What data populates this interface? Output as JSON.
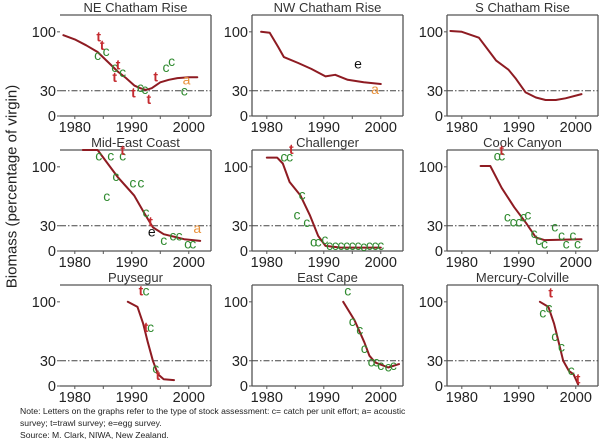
{
  "figure": {
    "ylabel": "Biomass (percentage of virgin)",
    "note_lines": [
      "Note: Letters on the graphs refer to the type of stock assessment: c= catch per unit effort; a= acoustic",
      "survey; t=trawl survey; e=egg survey.",
      "Source: M. Clark, NIWA, New Zealand."
    ],
    "colors": {
      "curve": "#8e1b22",
      "reference_line": "#444444",
      "axis": "#555555",
      "c": "#2f8a2f",
      "t": "#c42b30",
      "a": "#e8913a",
      "e": "#111111"
    }
  },
  "chart_data": [
    {
      "type": "line",
      "title": "NE Chatham Rise",
      "xlabel": "",
      "ylabel": "Biomass (percentage of virgin)",
      "xlim": [
        1977.4,
        2003.9
      ],
      "ylim": [
        0,
        120
      ],
      "xticks": [
        "1980",
        "1990",
        "2000"
      ],
      "yticks": [
        "0",
        "30",
        "100"
      ],
      "reference_line": 30,
      "curve": [
        [
          1978,
          96
        ],
        [
          1980,
          91
        ],
        [
          1982,
          84
        ],
        [
          1984,
          76
        ],
        [
          1986,
          63
        ],
        [
          1987.5,
          53
        ],
        [
          1989,
          45
        ],
        [
          1990.5,
          36
        ],
        [
          1991.5,
          33
        ],
        [
          1992.5,
          31
        ],
        [
          1993.5,
          33
        ],
        [
          1995,
          40
        ],
        [
          1996.5,
          43
        ],
        [
          1998,
          45
        ],
        [
          2000,
          46
        ],
        [
          2001.5,
          46
        ]
      ],
      "markers": [
        {
          "type": "t",
          "year": 1984.2,
          "value": 93
        },
        {
          "type": "t",
          "year": 1984.8,
          "value": 83
        },
        {
          "type": "c",
          "year": 1984.0,
          "value": 71
        },
        {
          "type": "c",
          "year": 1985.5,
          "value": 76
        },
        {
          "type": "c",
          "year": 1987.0,
          "value": 57
        },
        {
          "type": "t",
          "year": 1987.6,
          "value": 60
        },
        {
          "type": "c",
          "year": 1988.4,
          "value": 51
        },
        {
          "type": "t",
          "year": 1987.0,
          "value": 45
        },
        {
          "type": "t",
          "year": 1990.3,
          "value": 27
        },
        {
          "type": "c",
          "year": 1991.5,
          "value": 33
        },
        {
          "type": "c",
          "year": 1992.3,
          "value": 31
        },
        {
          "type": "t",
          "year": 1993.0,
          "value": 19
        },
        {
          "type": "t",
          "year": 1994.2,
          "value": 46
        },
        {
          "type": "c",
          "year": 1996.0,
          "value": 57
        },
        {
          "type": "c",
          "year": 1997.0,
          "value": 64
        },
        {
          "type": "a",
          "year": 1999.6,
          "value": 42
        },
        {
          "type": "c",
          "year": 1999.2,
          "value": 29
        }
      ]
    },
    {
      "type": "line",
      "title": "NW Chatham Rise",
      "xlabel": "",
      "ylabel": "",
      "xlim": [
        1977.4,
        2003.9
      ],
      "ylim": [
        0,
        120
      ],
      "xticks": [
        "1980",
        "1990",
        "2000"
      ],
      "yticks": [
        "0",
        "30",
        "100"
      ],
      "reference_line": 30,
      "curve": [
        [
          1979,
          100
        ],
        [
          1980.5,
          99
        ],
        [
          1982,
          82
        ],
        [
          1983,
          70
        ],
        [
          1985.5,
          63
        ],
        [
          1987.8,
          56
        ],
        [
          1990.3,
          47
        ],
        [
          1992,
          49
        ],
        [
          1994.2,
          43
        ],
        [
          1997,
          40
        ],
        [
          2000,
          38
        ]
      ],
      "markers": [
        {
          "type": "e",
          "year": 1996.0,
          "value": 61
        },
        {
          "type": "a",
          "year": 1999.0,
          "value": 31
        }
      ]
    },
    {
      "type": "line",
      "title": "S Chatham Rise",
      "xlabel": "",
      "ylabel": "",
      "xlim": [
        1977.4,
        2003.9
      ],
      "ylim": [
        0,
        120
      ],
      "xticks": [
        "1980",
        "1990",
        "2000"
      ],
      "yticks": [
        "0",
        "30",
        "100"
      ],
      "reference_line": 30,
      "curve": [
        [
          1978,
          101
        ],
        [
          1980,
          100
        ],
        [
          1983,
          93
        ],
        [
          1986,
          66
        ],
        [
          1988.2,
          55
        ],
        [
          1989.4,
          45
        ],
        [
          1991.2,
          28
        ],
        [
          1993,
          22
        ],
        [
          1994.7,
          19
        ],
        [
          1996.5,
          19
        ],
        [
          1998.2,
          21
        ],
        [
          2001,
          26
        ]
      ],
      "markers": []
    },
    {
      "type": "line",
      "title": "Mid-East Coast",
      "xlabel": "",
      "ylabel": "Biomass (percentage of virgin)",
      "xlim": [
        1977.4,
        2003.9
      ],
      "ylim": [
        0,
        120
      ],
      "xticks": [
        "1980",
        "1990",
        "2000"
      ],
      "yticks": [
        "0",
        "30",
        "100"
      ],
      "reference_line": 30,
      "curve": [
        [
          1981.4,
          120
        ],
        [
          1984,
          120
        ],
        [
          1987.5,
          88
        ],
        [
          1990.4,
          66
        ],
        [
          1992.2,
          45
        ],
        [
          1993.7,
          28
        ],
        [
          1995.6,
          20
        ],
        [
          1999.2,
          14
        ],
        [
          2002,
          12
        ]
      ],
      "markers": [
        {
          "type": "c",
          "year": 1984.2,
          "value": 112
        },
        {
          "type": "c",
          "year": 1986.3,
          "value": 112
        },
        {
          "type": "c",
          "year": 1988.4,
          "value": 112
        },
        {
          "type": "t",
          "year": 1988.4,
          "value": 119
        },
        {
          "type": "c",
          "year": 1987.2,
          "value": 88
        },
        {
          "type": "c",
          "year": 1990.2,
          "value": 80
        },
        {
          "type": "c",
          "year": 1991.6,
          "value": 80
        },
        {
          "type": "c",
          "year": 1985.6,
          "value": 64
        },
        {
          "type": "c",
          "year": 1992.5,
          "value": 45
        },
        {
          "type": "t",
          "year": 1993.3,
          "value": 34
        },
        {
          "type": "e",
          "year": 1993.5,
          "value": 22
        },
        {
          "type": "c",
          "year": 1995.6,
          "value": 12
        },
        {
          "type": "c",
          "year": 1997.2,
          "value": 17
        },
        {
          "type": "c",
          "year": 1998.3,
          "value": 17
        },
        {
          "type": "c",
          "year": 1999.8,
          "value": 8
        },
        {
          "type": "c",
          "year": 2000.7,
          "value": 8
        },
        {
          "type": "a",
          "year": 2001.5,
          "value": 26
        }
      ]
    },
    {
      "type": "line",
      "title": "Challenger",
      "xlabel": "",
      "ylabel": "",
      "xlim": [
        1977.4,
        2003.9
      ],
      "ylim": [
        0,
        120
      ],
      "xticks": [
        "1980",
        "1990",
        "2000"
      ],
      "yticks": [
        "0",
        "30",
        "100"
      ],
      "reference_line": 30,
      "curve": [
        [
          1980,
          111
        ],
        [
          1981.8,
          111
        ],
        [
          1982.8,
          104
        ],
        [
          1984,
          82
        ],
        [
          1985.9,
          66
        ],
        [
          1987.6,
          42
        ],
        [
          1989,
          18
        ],
        [
          1990.3,
          6
        ],
        [
          1993,
          4
        ],
        [
          2000,
          4
        ]
      ],
      "markers": [
        {
          "type": "c",
          "year": 1983.0,
          "value": 111
        },
        {
          "type": "c",
          "year": 1984.0,
          "value": 111
        },
        {
          "type": "t",
          "year": 1984.3,
          "value": 120
        },
        {
          "type": "c",
          "year": 1986.2,
          "value": 66
        },
        {
          "type": "c",
          "year": 1985.3,
          "value": 42
        },
        {
          "type": "c",
          "year": 1987.0,
          "value": 33
        },
        {
          "type": "c",
          "year": 1988.2,
          "value": 10
        },
        {
          "type": "c",
          "year": 1989.0,
          "value": 10
        },
        {
          "type": "c",
          "year": 1990.2,
          "value": 13
        },
        {
          "type": "c",
          "year": 1991.0,
          "value": 6
        },
        {
          "type": "c",
          "year": 1992.0,
          "value": 6
        },
        {
          "type": "c",
          "year": 1993.0,
          "value": 6
        },
        {
          "type": "c",
          "year": 1994.0,
          "value": 6
        },
        {
          "type": "c",
          "year": 1995.0,
          "value": 6
        },
        {
          "type": "c",
          "year": 1996.0,
          "value": 6
        },
        {
          "type": "c",
          "year": 1997.0,
          "value": 5
        },
        {
          "type": "c",
          "year": 1998.0,
          "value": 6
        },
        {
          "type": "c",
          "year": 1999.0,
          "value": 6
        },
        {
          "type": "c",
          "year": 2000.0,
          "value": 6
        }
      ]
    },
    {
      "type": "line",
      "title": "Cook Canyon",
      "xlabel": "",
      "ylabel": "",
      "xlim": [
        1977.4,
        2003.9
      ],
      "ylim": [
        0,
        120
      ],
      "xticks": [
        "1980",
        "1990",
        "2000"
      ],
      "yticks": [
        "0",
        "30",
        "100"
      ],
      "reference_line": 30,
      "curve": [
        [
          1983.3,
          101
        ],
        [
          1985,
          101
        ],
        [
          1987,
          75
        ],
        [
          1989.2,
          52
        ],
        [
          1991.3,
          33
        ],
        [
          1993,
          16
        ],
        [
          1994.5,
          13
        ],
        [
          2001,
          14
        ]
      ],
      "markers": [
        {
          "type": "c",
          "year": 1986.2,
          "value": 112
        },
        {
          "type": "c",
          "year": 1987.0,
          "value": 112
        },
        {
          "type": "t",
          "year": 1987.0,
          "value": 119
        },
        {
          "type": "c",
          "year": 1988.0,
          "value": 40
        },
        {
          "type": "c",
          "year": 1989.0,
          "value": 34
        },
        {
          "type": "c",
          "year": 1990.0,
          "value": 34
        },
        {
          "type": "c",
          "year": 1990.8,
          "value": 40
        },
        {
          "type": "c",
          "year": 1991.6,
          "value": 42
        },
        {
          "type": "c",
          "year": 1992.7,
          "value": 20
        },
        {
          "type": "c",
          "year": 1993.5,
          "value": 12
        },
        {
          "type": "c",
          "year": 1994.5,
          "value": 8
        },
        {
          "type": "c",
          "year": 1996.3,
          "value": 28
        },
        {
          "type": "c",
          "year": 1997.5,
          "value": 18
        },
        {
          "type": "c",
          "year": 1998.3,
          "value": 8
        },
        {
          "type": "c",
          "year": 1999.5,
          "value": 18
        },
        {
          "type": "c",
          "year": 2000.3,
          "value": 8
        }
      ]
    },
    {
      "type": "line",
      "title": "Puysegur",
      "xlabel": "",
      "ylabel": "Biomass (percentage of virgin)",
      "xlim": [
        1977.4,
        2003.9
      ],
      "ylim": [
        0,
        120
      ],
      "xticks": [
        "1980",
        "1990",
        "2000"
      ],
      "yticks": [
        "0",
        "30",
        "100"
      ],
      "reference_line": 30,
      "curve": [
        [
          1989.3,
          100
        ],
        [
          1991,
          94
        ],
        [
          1992,
          74
        ],
        [
          1992.8,
          52
        ],
        [
          1993.7,
          30
        ],
        [
          1994.6,
          14
        ],
        [
          1995.6,
          8
        ],
        [
          1997.4,
          7
        ]
      ],
      "markers": [
        {
          "type": "t",
          "year": 1991.6,
          "value": 112
        },
        {
          "type": "c",
          "year": 1992.5,
          "value": 112
        },
        {
          "type": "t",
          "year": 1992.5,
          "value": 69
        },
        {
          "type": "c",
          "year": 1993.3,
          "value": 69
        },
        {
          "type": "c",
          "year": 1994.2,
          "value": 20
        },
        {
          "type": "t",
          "year": 1994.6,
          "value": 12
        }
      ]
    },
    {
      "type": "line",
      "title": "East Cape",
      "xlabel": "",
      "ylabel": "",
      "xlim": [
        1977.4,
        2003.9
      ],
      "ylim": [
        0,
        120
      ],
      "xticks": [
        "1980",
        "1990",
        "2000"
      ],
      "yticks": [
        "0",
        "30",
        "100"
      ],
      "reference_line": 30,
      "curve": [
        [
          1993.4,
          100
        ],
        [
          1995.4,
          78
        ],
        [
          1997.1,
          52
        ],
        [
          1998,
          36
        ],
        [
          1999,
          28
        ],
        [
          2001.3,
          22
        ],
        [
          2003.2,
          26
        ]
      ],
      "markers": [
        {
          "type": "c",
          "year": 1994.2,
          "value": 112
        },
        {
          "type": "c",
          "year": 1995.0,
          "value": 76
        },
        {
          "type": "c",
          "year": 1996.3,
          "value": 66
        },
        {
          "type": "c",
          "year": 1997.1,
          "value": 44
        },
        {
          "type": "c",
          "year": 1998.3,
          "value": 28
        },
        {
          "type": "c",
          "year": 1999.2,
          "value": 28
        },
        {
          "type": "c",
          "year": 2000.0,
          "value": 24
        },
        {
          "type": "c",
          "year": 2001.3,
          "value": 22
        },
        {
          "type": "c",
          "year": 2002.2,
          "value": 24
        }
      ]
    },
    {
      "type": "line",
      "title": "Mercury-Colville",
      "xlabel": "",
      "ylabel": "",
      "xlim": [
        1977.4,
        2003.9
      ],
      "ylim": [
        0,
        120
      ],
      "xticks": [
        "1980",
        "1990",
        "2000"
      ],
      "yticks": [
        "0",
        "30",
        "100"
      ],
      "reference_line": 30,
      "curve": [
        [
          1993.7,
          100
        ],
        [
          1995.2,
          94
        ],
        [
          1996.2,
          74
        ],
        [
          1997,
          52
        ],
        [
          1997.8,
          30
        ],
        [
          1998.8,
          18
        ],
        [
          1999.6,
          14
        ],
        [
          2000.4,
          2
        ]
      ],
      "markers": [
        {
          "type": "t",
          "year": 1995.6,
          "value": 110
        },
        {
          "type": "c",
          "year": 1994.2,
          "value": 86
        },
        {
          "type": "c",
          "year": 1995.3,
          "value": 92
        },
        {
          "type": "c",
          "year": 1996.3,
          "value": 58
        },
        {
          "type": "c",
          "year": 1997.5,
          "value": 46
        },
        {
          "type": "c",
          "year": 1999.2,
          "value": 18
        },
        {
          "type": "t",
          "year": 2000.4,
          "value": 8
        }
      ]
    }
  ]
}
